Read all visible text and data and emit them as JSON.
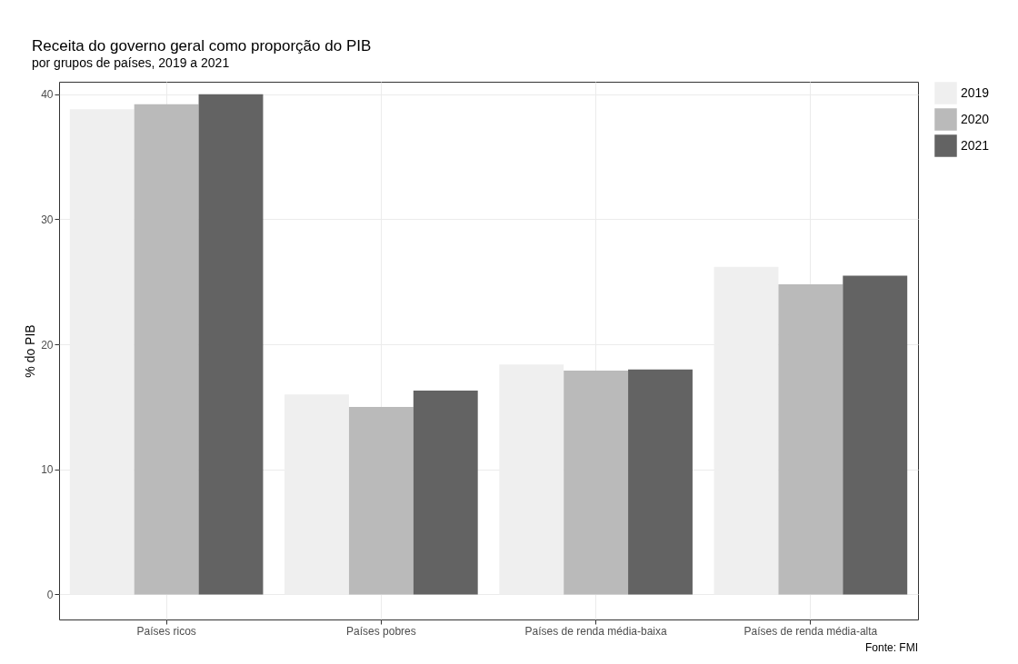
{
  "chart_data": {
    "type": "bar",
    "title": "Receita do governo geral como proporção do PIB",
    "subtitle": "por grupos de países, 2019 a 2021",
    "ylabel": "% do PIB",
    "annotations": [
      "Fonte: FMI"
    ],
    "categories": [
      "Países ricos",
      "Países pobres",
      "Países de renda média-baixa",
      "Países de renda média-alta"
    ],
    "series": [
      {
        "name": "2019",
        "color": "#efefef",
        "values": [
          38.8,
          16.0,
          18.4,
          26.2
        ]
      },
      {
        "name": "2020",
        "color": "#bababa",
        "values": [
          39.2,
          15.0,
          17.9,
          24.8
        ]
      },
      {
        "name": "2021",
        "color": "#636363",
        "values": [
          40.0,
          16.3,
          18.0,
          25.5
        ]
      }
    ],
    "ylim": [
      -2,
      41
    ],
    "yticks": [
      0,
      10,
      20,
      30,
      40
    ],
    "grid": true,
    "legend": "right"
  }
}
